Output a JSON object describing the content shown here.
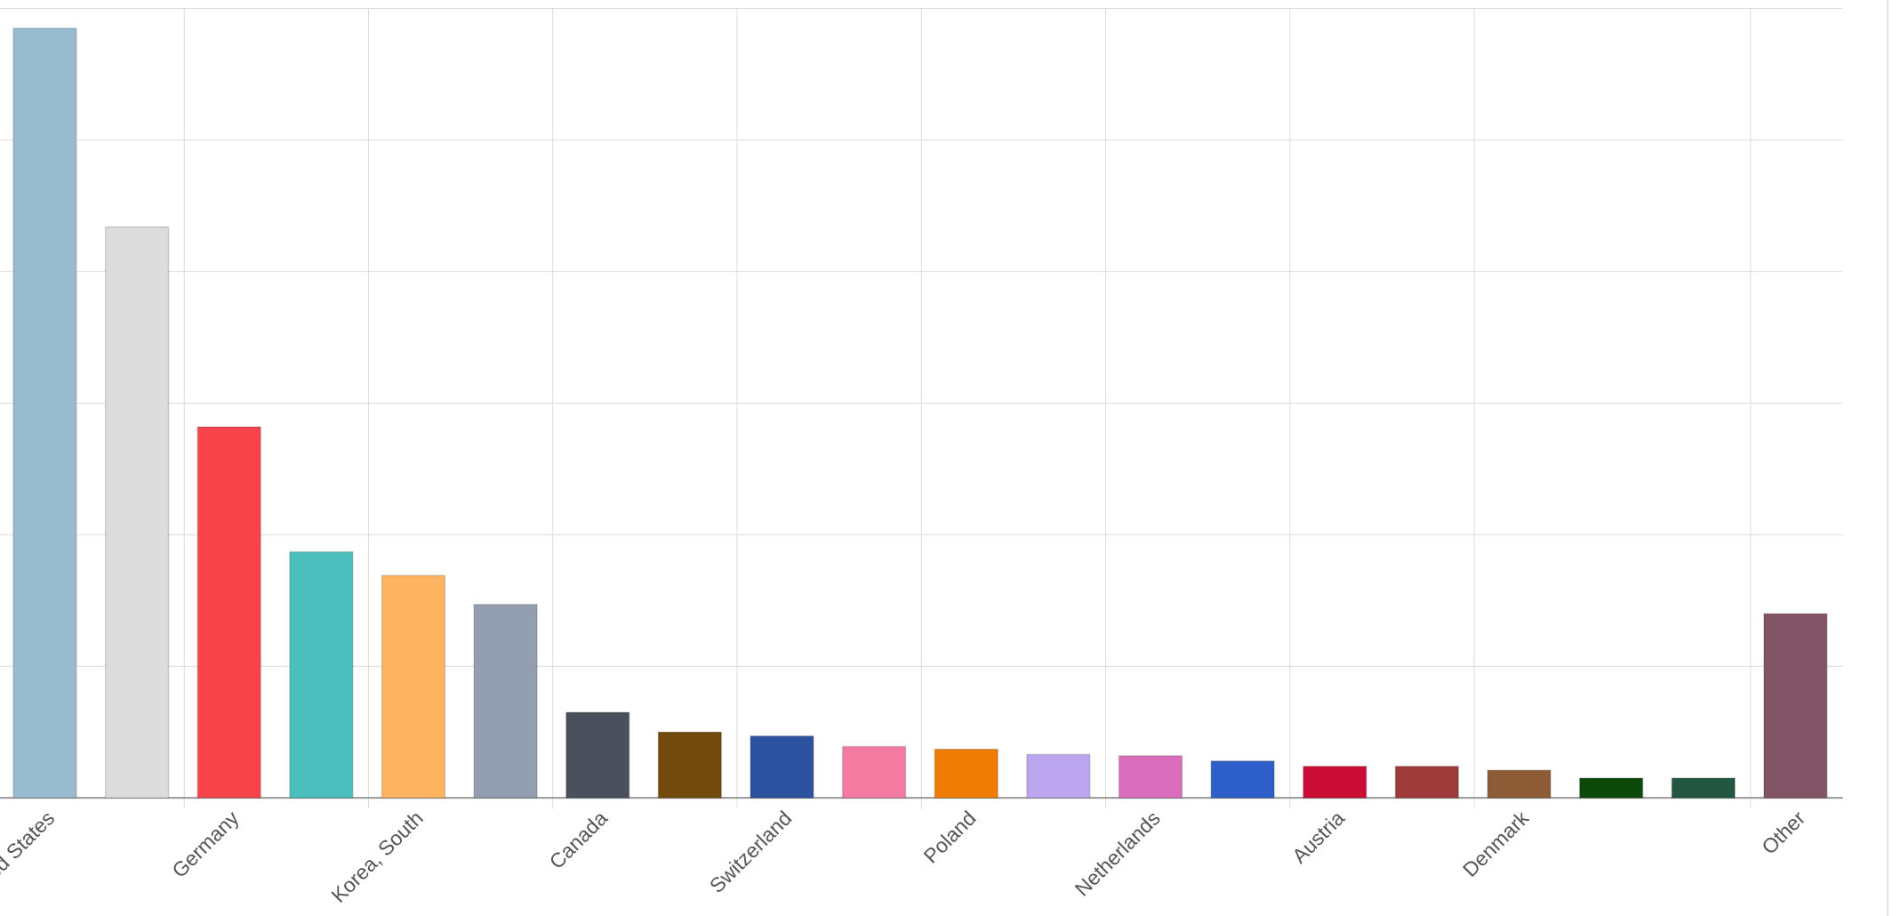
{
  "chart_data": {
    "type": "bar",
    "categories": [
      "United States",
      null,
      "Germany",
      null,
      "Korea, South",
      null,
      "Canada",
      null,
      "Switzerland",
      null,
      "Poland",
      null,
      "Netherlands",
      null,
      "Austria",
      null,
      "Denmark",
      null,
      null,
      "Other"
    ],
    "values": [
      5.85,
      4.34,
      2.82,
      1.87,
      1.69,
      1.47,
      0.65,
      0.5,
      0.47,
      0.39,
      0.37,
      0.33,
      0.32,
      0.28,
      0.24,
      0.24,
      0.21,
      0.15,
      0.15,
      1.4
    ],
    "colors": [
      "#98bbcf",
      "#dcdcdc",
      "#f8454b",
      "#4bbfbd",
      "#fdb35f",
      "#939fb1",
      "#4a505c",
      "#724a0e",
      "#2d52a0",
      "#f47aa1",
      "#ef7d05",
      "#bca6ef",
      "#db6ebc",
      "#2e5ec9",
      "#c90d34",
      "#9e3a3a",
      "#8d5c37",
      "#0d4a0a",
      "#235641",
      "#835366"
    ],
    "ylim": [
      0,
      6
    ],
    "yticks": [
      0,
      1,
      2,
      3,
      4,
      5,
      6
    ],
    "grid": true
  }
}
